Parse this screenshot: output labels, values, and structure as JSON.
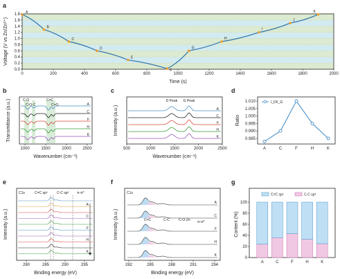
{
  "panels": {
    "a": {
      "label": "a",
      "xlabel": "Time (s)",
      "ylabel": "Voltage (V vs Zn/Zn²⁺)",
      "xlim": [
        0,
        2000
      ],
      "ylim": [
        0,
        1.8
      ],
      "xticks": [
        "0",
        "200",
        "400",
        "600",
        "800",
        "1000",
        "1200",
        "1400",
        "1600",
        "1800",
        "2000"
      ],
      "yticks": [
        "0.0",
        "0.2",
        "0.4",
        "0.6",
        "0.8",
        "1.0",
        "1.2",
        "1.4",
        "1.6",
        "1.8"
      ],
      "points": [
        {
          "name": "A",
          "t": 0,
          "v": 1.78
        },
        {
          "name": "B",
          "t": 140,
          "v": 1.29
        },
        {
          "name": "C",
          "t": 300,
          "v": 0.9
        },
        {
          "name": "D",
          "t": 480,
          "v": 0.6
        },
        {
          "name": "E",
          "t": 680,
          "v": 0.3
        },
        {
          "name": "F",
          "t": 930,
          "v": 0.02
        },
        {
          "name": "G",
          "t": 1070,
          "v": 0.6
        },
        {
          "name": "H",
          "t": 1280,
          "v": 0.9
        },
        {
          "name": "I",
          "t": 1520,
          "v": 1.2
        },
        {
          "name": "J",
          "t": 1720,
          "v": 1.5
        },
        {
          "name": "K",
          "t": 1900,
          "v": 1.78
        }
      ]
    },
    "b": {
      "label": "b",
      "xlabel": "Wavenumber (cm⁻¹)",
      "ylabel": "Transmittance (a.u.)",
      "xticks": [
        "1000",
        "1500",
        "2000",
        "2500"
      ],
      "series": [
        "A",
        "C",
        "F",
        "H",
        "K"
      ],
      "annotations": [
        "C-O",
        "C-O-C",
        "C=C",
        "C=O"
      ]
    },
    "c": {
      "label": "c",
      "xlabel": "Wavenumber (cm⁻¹)",
      "ylabel": "Intensity (a.u.)",
      "xticks": [
        "500",
        "1000",
        "1500",
        "2000",
        "2500"
      ],
      "series": [
        "A",
        "C",
        "F",
        "H",
        "K"
      ],
      "annotations": [
        "D Peak",
        "G Peak"
      ]
    },
    "d": {
      "label": "d",
      "ylabel": "Ratio",
      "legend": "I_D/I_G",
      "yticks": [
        "0.985",
        "0.990",
        "0.995",
        "1.000",
        "1.005",
        "1.010"
      ],
      "chart_data": {
        "type": "line",
        "categories": [
          "A",
          "C",
          "F",
          "H",
          "K"
        ],
        "values": [
          0.983,
          0.99,
          1.01,
          0.995,
          0.985
        ],
        "ylim": [
          0.985,
          1.01
        ]
      }
    },
    "e": {
      "label": "e",
      "tag": "C1s",
      "xlabel": "Binding energy (eV)",
      "ylabel": "Intensity (a.u.)",
      "xticks": [
        "280",
        "285",
        "290",
        "295"
      ],
      "series": [
        "A",
        "C",
        "F",
        "H",
        "K"
      ],
      "annotations": [
        "C=C sp²",
        "C-C sp³",
        "π-π*"
      ]
    },
    "f": {
      "label": "f",
      "tag": "C1s",
      "xlabel": "Binding energy (eV)",
      "ylabel": "Intensity (a.u.)",
      "xticks": [
        "282",
        "285",
        "288",
        "291",
        "294"
      ],
      "series": [
        "A",
        "C",
        "F",
        "H",
        "K"
      ],
      "annotations": [
        "C=C",
        "C-C",
        "C-O-Zn",
        "π-π*"
      ]
    },
    "g": {
      "label": "g",
      "ylabel": "Content (%)",
      "yticks": [
        "0",
        "20",
        "40",
        "60",
        "80",
        "100"
      ],
      "legend": [
        "C=C sp²",
        "C-C sp³"
      ],
      "chart_data": {
        "type": "bar",
        "categories": [
          "A",
          "C",
          "F",
          "H",
          "K"
        ],
        "series": [
          {
            "name": "C-C sp³",
            "values": [
              24,
              36,
              43,
              33,
              25
            ]
          },
          {
            "name": "C=C sp²",
            "values": [
              76,
              64,
              57,
              67,
              75
            ]
          }
        ],
        "ylim": [
          0,
          100
        ]
      }
    }
  },
  "colors": {
    "curve": "#2a6faa",
    "marker": "#f0a030",
    "bandA": "#dbead0",
    "bandB": "#d2ebf0",
    "blue": "#4a90c8",
    "pink": "#e3a9cf",
    "green": "#3a9a3a",
    "red": "#d8483a",
    "purple": "#9a5ab8",
    "black": "#222222"
  }
}
